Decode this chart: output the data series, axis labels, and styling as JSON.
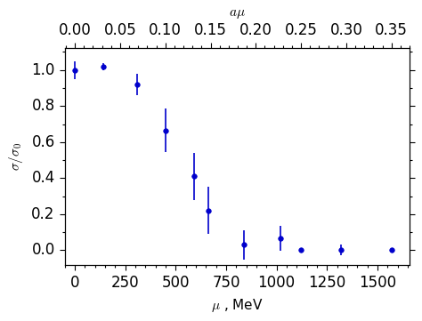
{
  "x_mu": [
    0,
    140,
    310,
    450,
    590,
    660,
    840,
    1020,
    1120,
    1320,
    1570
  ],
  "y_sigma": [
    1.0,
    1.02,
    0.92,
    0.665,
    0.41,
    0.22,
    0.03,
    0.065,
    0.0,
    0.0,
    0.0
  ],
  "yerr_lo": [
    0.05,
    0.02,
    0.06,
    0.12,
    0.13,
    0.13,
    0.08,
    0.07,
    0.01,
    0.03,
    0.01
  ],
  "yerr_hi": [
    0.05,
    0.02,
    0.06,
    0.12,
    0.13,
    0.13,
    0.08,
    0.07,
    0.01,
    0.03,
    0.01
  ],
  "color": "#0000CC",
  "xlabel": "$\\mu$ , MeV",
  "ylabel": "$\\sigma/\\sigma_0$",
  "top_xlabel": "$a\\mu$",
  "xlim": [
    -50,
    1660
  ],
  "ylim": [
    -0.08,
    1.12
  ],
  "yticks": [
    0.0,
    0.2,
    0.4,
    0.6,
    0.8,
    1.0
  ],
  "xticks_bottom": [
    0,
    250,
    500,
    750,
    1000,
    1250,
    1500
  ],
  "xticks_top": [
    0.0,
    0.05,
    0.1,
    0.15,
    0.2,
    0.25,
    0.3,
    0.35
  ]
}
